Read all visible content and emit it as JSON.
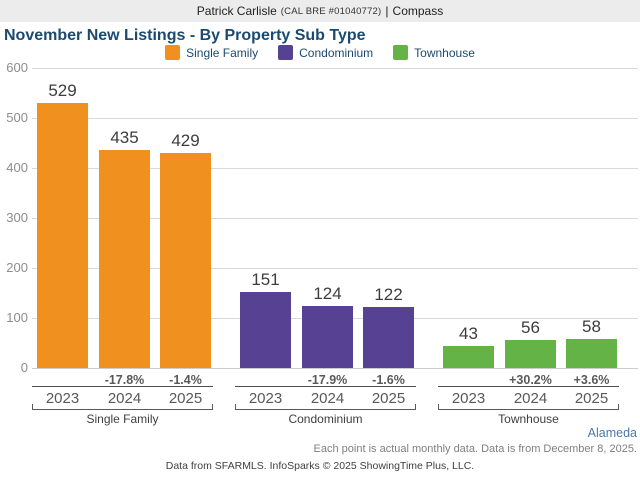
{
  "header": {
    "agent_name": "Patrick Carlisle",
    "license": "(CAL BRE #01040772)",
    "separator": "|",
    "brokerage": "Compass"
  },
  "chart_data": {
    "type": "bar",
    "title": "November New Listings - By Property Sub Type",
    "categories": [
      "2023",
      "2024",
      "2025"
    ],
    "series": [
      {
        "name": "Single Family",
        "color": "#f0901e",
        "values": [
          529,
          435,
          429
        ],
        "pct_change": [
          null,
          "-17.8%",
          "-1.4%"
        ]
      },
      {
        "name": "Condominium",
        "color": "#564193",
        "values": [
          151,
          124,
          122
        ],
        "pct_change": [
          null,
          "-17.9%",
          "-1.6%"
        ]
      },
      {
        "name": "Townhouse",
        "color": "#64b346",
        "values": [
          43,
          56,
          58
        ],
        "pct_change": [
          null,
          "+30.2%",
          "+3.6%"
        ]
      }
    ],
    "ylim": [
      0,
      600
    ],
    "yticks": [
      0,
      100,
      200,
      300,
      400,
      500,
      600
    ],
    "grid": true,
    "legend_position": "top",
    "xlabel": "",
    "ylabel": ""
  },
  "footer": {
    "region_label": "Alameda",
    "note": "Each point is actual monthly data. Data is from December 8, 2025.",
    "attribution": "Data from SFARMLS. InfoSparks © 2025 ShowingTime Plus, LLC."
  }
}
